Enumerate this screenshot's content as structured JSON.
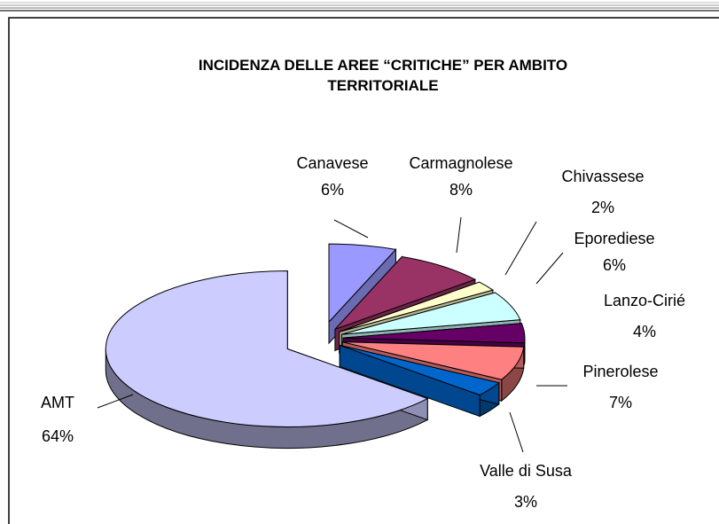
{
  "chart_data": {
    "type": "pie",
    "title": "INCIDENZA DELLE AREE “CRITICHE” PER AMBITO TERRITORIALE",
    "categories": [
      "Canavese",
      "Carmagnolese",
      "Chivassese",
      "Eporediese",
      "Lanzo-Cirié",
      "Pinerolese",
      "Valle di Susa",
      "AMT"
    ],
    "values": [
      6,
      8,
      2,
      6,
      4,
      7,
      3,
      64
    ],
    "value_labels": [
      "6%",
      "8%",
      "2%",
      "6%",
      "4%",
      "7%",
      "3%",
      "64%"
    ],
    "colors": [
      "#9999ff",
      "#993366",
      "#ffffcc",
      "#ccffff",
      "#660066",
      "#ff8080",
      "#0066cc",
      "#ccccff"
    ]
  }
}
